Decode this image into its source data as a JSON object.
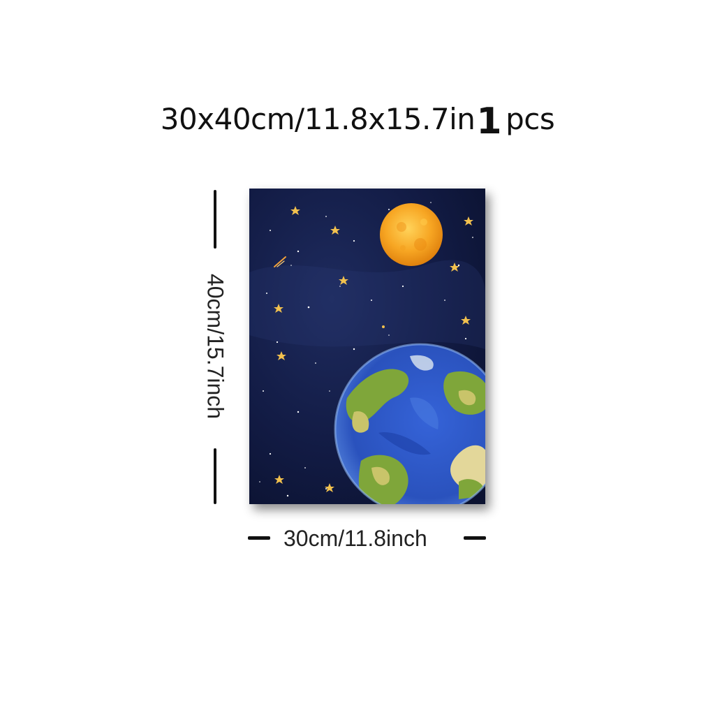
{
  "headline": {
    "size_text": "30x40cm/11.8x15.7in",
    "quantity": "1",
    "unit": "pcs"
  },
  "dimensions": {
    "height_label": "40cm/15.7inch",
    "width_label": "30cm/11.8inch"
  },
  "artwork": {
    "subject": "watercolor-space-earth-moon",
    "colors": {
      "sky": "#0e1636",
      "moon": "#f5a21a",
      "ocean": "#2f5fd0",
      "land": "#7fa63a",
      "star": "#f2c14e"
    }
  }
}
